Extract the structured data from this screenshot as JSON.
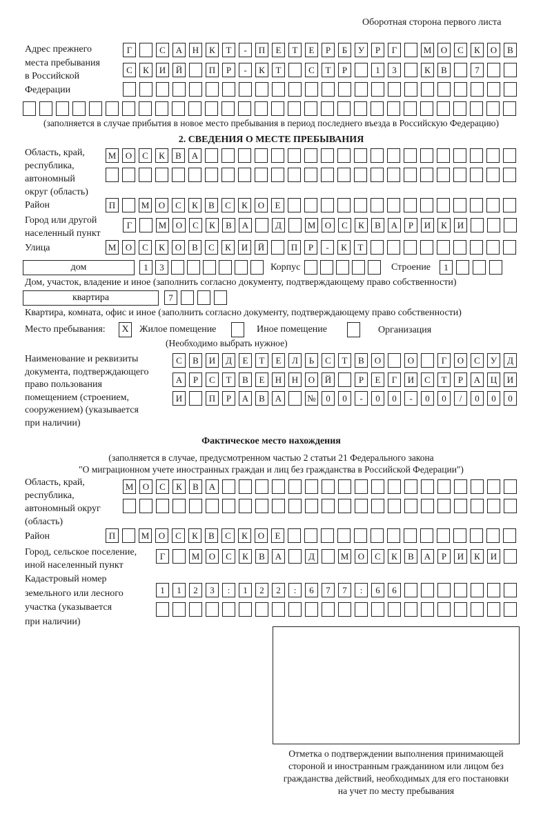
{
  "header": "Оборотная сторона первого листа",
  "prev_address": {
    "label": [
      "Адрес прежнего",
      "места пребывания",
      "в Российской",
      "Федерации"
    ],
    "rows": [
      [
        "Г",
        "",
        "С",
        "А",
        "Н",
        "К",
        "Т",
        "-",
        "П",
        "Е",
        "Т",
        "Е",
        "Р",
        "Б",
        "У",
        "Р",
        "Г",
        "",
        "М",
        "О",
        "С",
        "К",
        "О",
        "В"
      ],
      [
        "С",
        "К",
        "И",
        "Й",
        "",
        "П",
        "Р",
        "-",
        "К",
        "Т",
        "",
        "С",
        "Т",
        "Р",
        "",
        "1",
        "3",
        "",
        "К",
        "В",
        "",
        "7",
        "",
        ""
      ],
      [],
      []
    ],
    "note": "(заполняется в случае прибытия в новое место пребывания в период последнего въезда в Российскую Федерацию)"
  },
  "section2": {
    "title": "2. СВЕДЕНИЯ О МЕСТЕ ПРЕБЫВАНИЯ",
    "region_label": [
      "Область, край,",
      "республика,",
      "автономный",
      "округ (область)"
    ],
    "region_rows": [
      [
        "М",
        "О",
        "С",
        "К",
        "В",
        "А"
      ],
      []
    ],
    "district_label": "Район",
    "district": [
      "П",
      "",
      "М",
      "О",
      "С",
      "К",
      "В",
      "С",
      "К",
      "О",
      "Е"
    ],
    "city_label": [
      "Город или другой",
      "населенный пункт"
    ],
    "city": [
      "Г",
      "",
      "М",
      "О",
      "С",
      "К",
      "В",
      "А",
      "",
      "Д",
      "",
      "М",
      "О",
      "С",
      "К",
      "В",
      "А",
      "Р",
      "И",
      "К",
      "И"
    ],
    "street_label": "Улица",
    "street": [
      "М",
      "О",
      "С",
      "К",
      "О",
      "В",
      "С",
      "К",
      "И",
      "Й",
      "",
      "П",
      "Р",
      "-",
      "К",
      "Т"
    ],
    "house_type": "дом",
    "house": [
      "1",
      "3"
    ],
    "korpus_label": "Корпус",
    "korpus": [],
    "building_label": "Строение",
    "building": [
      "1"
    ],
    "house_note": "Дом, участок, владение и иное (заполнить согласно документу, подтверждающему право собственности)",
    "flat_type": "квартира",
    "flat": [
      "7"
    ],
    "flat_note": "Квартира, комната, офис и иное (заполнить согласно документу, подтверждающему право собственности)",
    "place_label": "Место пребывания:",
    "place_options": [
      {
        "label": "Жилое помещение",
        "mark": "X",
        "checked": true
      },
      {
        "label": "Иное помещение",
        "mark": "",
        "checked": false
      },
      {
        "label": "Организация",
        "mark": "",
        "checked": false
      }
    ],
    "place_hint": "(Необходимо выбрать нужное)",
    "doc_label": [
      "Наименование и реквизиты",
      "документа, подтверждающего",
      "право пользования",
      "помещением (строением,",
      "сооружением) (указывается",
      "при наличии)"
    ],
    "doc_rows": [
      [
        "С",
        "В",
        "И",
        "Д",
        "Е",
        "Т",
        "Е",
        "Л",
        "Ь",
        "С",
        "Т",
        "В",
        "О",
        "",
        "О",
        "",
        "Г",
        "О",
        "С",
        "У",
        "Д"
      ],
      [
        "А",
        "Р",
        "С",
        "Т",
        "В",
        "Е",
        "Н",
        "Н",
        "О",
        "Й",
        "",
        "Р",
        "Е",
        "Г",
        "И",
        "С",
        "Т",
        "Р",
        "А",
        "Ц",
        "И"
      ],
      [
        "И",
        "",
        "П",
        "Р",
        "А",
        "В",
        "А",
        "",
        "№",
        "0",
        "0",
        "-",
        "0",
        "0",
        "-",
        "0",
        "0",
        "/",
        "0",
        "0",
        "0"
      ]
    ]
  },
  "actual": {
    "title": "Фактическое место нахождения",
    "note1": "(заполняется в случае, предусмотренном частью 2 статьи 21 Федерального закона",
    "note2": "\"О миграционном учете иностранных граждан и лиц без гражданства в Российской Федерации\")",
    "region_label": [
      "Область, край,",
      "республика,",
      "автономный округ",
      "(область)"
    ],
    "region_rows": [
      [
        "М",
        "О",
        "С",
        "К",
        "В",
        "А"
      ],
      []
    ],
    "district_label": "Район",
    "district": [
      "П",
      "",
      "М",
      "О",
      "С",
      "К",
      "В",
      "С",
      "К",
      "О",
      "Е"
    ],
    "city_label": [
      "Город, сельское поселение,",
      "иной населенный пункт"
    ],
    "city": [
      "Г",
      "",
      "М",
      "О",
      "С",
      "К",
      "В",
      "А",
      "",
      "Д",
      "",
      "М",
      "О",
      "С",
      "К",
      "В",
      "А",
      "Р",
      "И",
      "К",
      "И"
    ],
    "cadastre_label": [
      "Кадастровый номер",
      "земельного или лесного",
      "участка (указывается",
      "при наличии)"
    ],
    "cadastre_rows": [
      [
        "1",
        "1",
        "2",
        "3",
        ":",
        "1",
        "2",
        "2",
        ":",
        "6",
        "7",
        "7",
        ":",
        "6",
        "6"
      ],
      []
    ]
  },
  "stamp_caption": [
    "Отметка о подтверждении выполнения принимающей",
    "стороной и иностранным гражданином или лицом без",
    "гражданства действий, необходимых для его постановки",
    "на учет по месту пребывания"
  ]
}
